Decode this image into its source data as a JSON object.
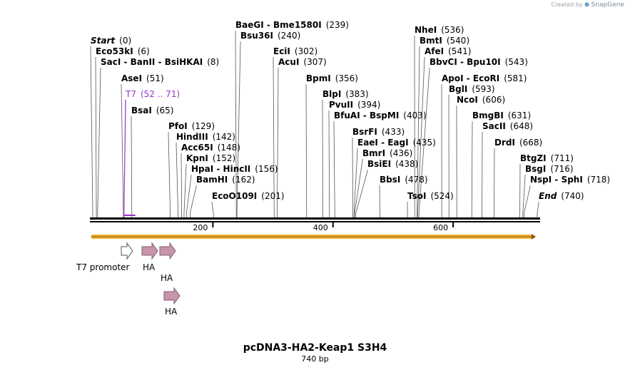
{
  "credit": {
    "created_by": "Created by",
    "brand": "SnapGene"
  },
  "title": "pcDNA3-HA2-Keap1 S3H4",
  "length_label": "740 bp",
  "sequence_length": 740,
  "colors": {
    "backbone": "#000000",
    "orf_arrow": "#f0b030",
    "ha": "#c795aa",
    "ha_stroke": "#8a5a70",
    "primer": "#9933cc",
    "promoter_fill": "#ffffff"
  },
  "ticks": [
    {
      "label": "200",
      "pos": 200
    },
    {
      "label": "400",
      "pos": 400
    },
    {
      "label": "600",
      "pos": 600
    }
  ],
  "sites": [
    {
      "name": "Start",
      "pos": "(0)",
      "loc": 0,
      "style": "italic"
    },
    {
      "name": "Eco53kI",
      "pos": "(6)",
      "loc": 6
    },
    {
      "name": "SacI  -  BanII  -  BsiHKAI",
      "pos": "(8)",
      "loc": 8
    },
    {
      "name": "AseI",
      "pos": "(51)",
      "loc": 51
    },
    {
      "name": "T7",
      "pos": "(52 .. 71)",
      "loc": 52,
      "primer": true
    },
    {
      "name": "BsaI",
      "pos": "(65)",
      "loc": 65
    },
    {
      "name": "PfoI",
      "pos": "(129)",
      "loc": 129
    },
    {
      "name": "HindIII",
      "pos": "(142)",
      "loc": 142
    },
    {
      "name": "Acc65I",
      "pos": "(148)",
      "loc": 148
    },
    {
      "name": "KpnI",
      "pos": "(152)",
      "loc": 152
    },
    {
      "name": "HpaI  -  HincII",
      "pos": "(156)",
      "loc": 156
    },
    {
      "name": "BamHI",
      "pos": "(162)",
      "loc": 162
    },
    {
      "name": "EcoO109I",
      "pos": "(201)",
      "loc": 201
    },
    {
      "name": "BaeGI  -  Bme1580I",
      "pos": "(239)",
      "loc": 239
    },
    {
      "name": "Bsu36I",
      "pos": "(240)",
      "loc": 240
    },
    {
      "name": "EciI",
      "pos": "(302)",
      "loc": 302
    },
    {
      "name": "AcuI",
      "pos": "(307)",
      "loc": 307
    },
    {
      "name": "BpmI",
      "pos": "(356)",
      "loc": 356
    },
    {
      "name": "BlpI",
      "pos": "(383)",
      "loc": 383
    },
    {
      "name": "PvuII",
      "pos": "(394)",
      "loc": 394
    },
    {
      "name": "BfuAI  -  BspMI",
      "pos": "(403)",
      "loc": 403
    },
    {
      "name": "BsrFI",
      "pos": "(433)",
      "loc": 433
    },
    {
      "name": "EaeI  -  EagI",
      "pos": "(435)",
      "loc": 435
    },
    {
      "name": "BmrI",
      "pos": "(436)",
      "loc": 436
    },
    {
      "name": "BsiEI",
      "pos": "(438)",
      "loc": 438
    },
    {
      "name": "BbsI",
      "pos": "(478)",
      "loc": 478
    },
    {
      "name": "TsoI",
      "pos": "(524)",
      "loc": 524
    },
    {
      "name": "NheI",
      "pos": "(536)",
      "loc": 536
    },
    {
      "name": "BmtI",
      "pos": "(540)",
      "loc": 540
    },
    {
      "name": "AfeI",
      "pos": "(541)",
      "loc": 541
    },
    {
      "name": "BbvCI  -  Bpu10I",
      "pos": "(543)",
      "loc": 543
    },
    {
      "name": "ApoI  -  EcoRI",
      "pos": "(581)",
      "loc": 581
    },
    {
      "name": "BglI",
      "pos": "(593)",
      "loc": 593
    },
    {
      "name": "NcoI",
      "pos": "(606)",
      "loc": 606
    },
    {
      "name": "BmgBI",
      "pos": "(631)",
      "loc": 631
    },
    {
      "name": "SacII",
      "pos": "(648)",
      "loc": 648
    },
    {
      "name": "DrdI",
      "pos": "(668)",
      "loc": 668
    },
    {
      "name": "BtgZI",
      "pos": "(711)",
      "loc": 711
    },
    {
      "name": "BsgI",
      "pos": "(716)",
      "loc": 716
    },
    {
      "name": "NspI  -  SphI",
      "pos": "(718)",
      "loc": 718
    },
    {
      "name": "End",
      "pos": "(740)",
      "loc": 740,
      "style": "italic"
    }
  ],
  "features": [
    {
      "name": "T7 promoter",
      "type": "promoter",
      "start": 52,
      "end": 71
    },
    {
      "name": "HA",
      "type": "tag",
      "start": 85,
      "end": 111
    },
    {
      "name": "HA",
      "type": "tag",
      "start": 114,
      "end": 140
    },
    {
      "name": "HA",
      "type": "tag",
      "start": 121,
      "end": 147
    }
  ]
}
